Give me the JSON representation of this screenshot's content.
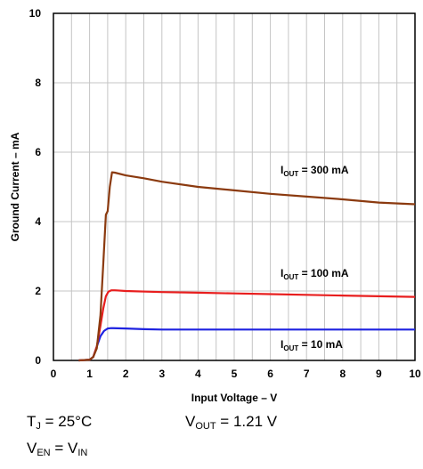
{
  "chart_data": {
    "type": "line",
    "title": "",
    "xlabel": "Input Voltage – V",
    "ylabel": "Ground Current – mA",
    "xlim": [
      0,
      10
    ],
    "ylim": [
      0,
      10
    ],
    "x_ticks": [
      "0",
      "1",
      "2",
      "3",
      "4",
      "5",
      "6",
      "7",
      "8",
      "9",
      "10"
    ],
    "y_ticks": [
      "0",
      "2",
      "4",
      "6",
      "8",
      "10"
    ],
    "grid": true,
    "x_minor_gridlines": 20,
    "series": [
      {
        "label_prefix": "I",
        "label_sub": "OUT",
        "label_suffix": " = 300 mA",
        "color": "#8B3A0F",
        "x": [
          0.7,
          1.0,
          1.1,
          1.2,
          1.3,
          1.38,
          1.45,
          1.5,
          1.56,
          1.62,
          1.7,
          2.0,
          2.5,
          3.0,
          4.0,
          5.0,
          6.0,
          7.0,
          8.0,
          9.0,
          10.0
        ],
        "y": [
          0.0,
          0.02,
          0.1,
          0.35,
          1.3,
          2.8,
          4.2,
          4.3,
          5.0,
          5.42,
          5.41,
          5.33,
          5.25,
          5.15,
          5.0,
          4.9,
          4.8,
          4.72,
          4.64,
          4.55,
          4.5
        ]
      },
      {
        "label_prefix": "I",
        "label_sub": "OUT",
        "label_suffix": " = 100 mA",
        "color": "#E81E1E",
        "x": [
          0.7,
          1.0,
          1.1,
          1.2,
          1.3,
          1.38,
          1.45,
          1.52,
          1.6,
          1.7,
          2.0,
          3.0,
          4.0,
          5.0,
          6.0,
          7.0,
          8.0,
          9.0,
          10.0
        ],
        "y": [
          0.0,
          0.02,
          0.1,
          0.4,
          1.0,
          1.5,
          1.85,
          1.98,
          2.02,
          2.02,
          2.0,
          1.97,
          1.95,
          1.93,
          1.91,
          1.89,
          1.87,
          1.85,
          1.83
        ]
      },
      {
        "label_prefix": "I",
        "label_sub": "OUT",
        "label_suffix": " = 10 mA",
        "color": "#1E22E0",
        "x": [
          0.7,
          1.0,
          1.1,
          1.2,
          1.3,
          1.4,
          1.5,
          1.6,
          2.0,
          2.5,
          3.0,
          4.0,
          5.0,
          6.0,
          7.0,
          8.0,
          9.0,
          10.0
        ],
        "y": [
          0.0,
          0.02,
          0.1,
          0.4,
          0.7,
          0.85,
          0.92,
          0.93,
          0.92,
          0.9,
          0.89,
          0.89,
          0.89,
          0.89,
          0.89,
          0.89,
          0.89,
          0.89
        ]
      }
    ]
  },
  "conditions": {
    "tj_main": "T",
    "tj_sub": "J",
    "tj_value": " = 25°C",
    "vout_main": "V",
    "vout_sub": "OUT",
    "vout_value": " = 1.21 V",
    "ven_main": "V",
    "ven_sub": "EN",
    "ven_eq": " = V",
    "ven_rhs_sub": "IN"
  }
}
